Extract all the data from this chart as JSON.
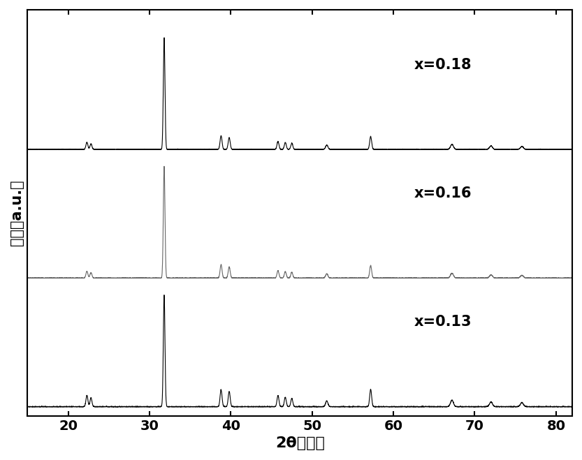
{
  "xlabel": "2θ（度）",
  "ylabel": "强度（a.u.）",
  "xlim": [
    15,
    82
  ],
  "xticks": [
    20,
    30,
    40,
    50,
    60,
    70,
    80
  ],
  "background_color": "#ffffff",
  "line_color_top": "#000000",
  "line_color_mid": "#666666",
  "line_color_bot": "#000000",
  "offsets": [
    2.3,
    1.15,
    0.0
  ],
  "peaks_018": {
    "positions": [
      22.3,
      22.8,
      31.8,
      38.8,
      39.8,
      45.8,
      46.7,
      47.5,
      51.8,
      57.2,
      67.2,
      72.0,
      75.8
    ],
    "heights": [
      0.28,
      0.22,
      4.5,
      0.55,
      0.48,
      0.32,
      0.28,
      0.25,
      0.18,
      0.52,
      0.2,
      0.14,
      0.12
    ],
    "widths": [
      0.12,
      0.12,
      0.1,
      0.12,
      0.12,
      0.12,
      0.12,
      0.12,
      0.14,
      0.12,
      0.18,
      0.18,
      0.18
    ]
  },
  "peaks_016": {
    "positions": [
      22.3,
      22.8,
      31.8,
      38.8,
      39.8,
      45.8,
      46.7,
      47.5,
      51.8,
      57.2,
      67.2,
      72.0,
      75.8
    ],
    "heights": [
      0.25,
      0.2,
      4.2,
      0.5,
      0.42,
      0.28,
      0.24,
      0.22,
      0.16,
      0.47,
      0.18,
      0.12,
      0.1
    ],
    "widths": [
      0.12,
      0.12,
      0.1,
      0.12,
      0.12,
      0.12,
      0.12,
      0.12,
      0.14,
      0.12,
      0.18,
      0.18,
      0.18
    ]
  },
  "peaks_013": {
    "positions": [
      22.3,
      22.8,
      31.8,
      38.8,
      39.8,
      45.8,
      46.7,
      47.5,
      51.8,
      57.2,
      67.2,
      72.0,
      75.8
    ],
    "heights": [
      0.38,
      0.3,
      3.8,
      0.58,
      0.52,
      0.38,
      0.32,
      0.28,
      0.2,
      0.58,
      0.22,
      0.16,
      0.14
    ],
    "widths": [
      0.12,
      0.12,
      0.1,
      0.12,
      0.12,
      0.12,
      0.12,
      0.12,
      0.14,
      0.12,
      0.18,
      0.18,
      0.18
    ]
  },
  "noise_amplitude": 0.008,
  "xlabel_fontsize": 16,
  "ylabel_fontsize": 15,
  "tick_fontsize": 14,
  "label_fontsize": 15
}
